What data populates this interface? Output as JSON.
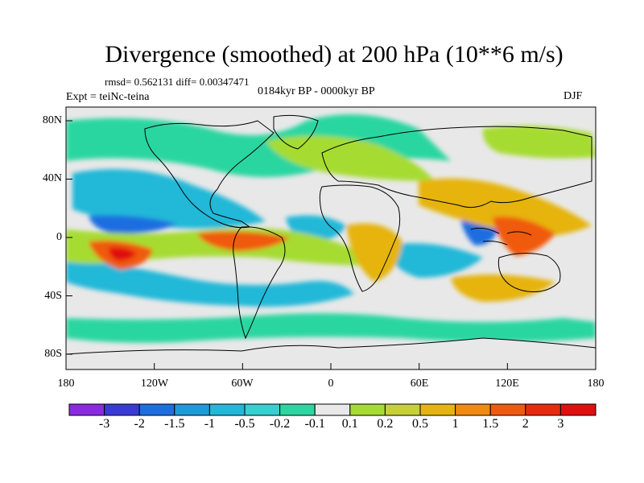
{
  "title": "Divergence (smoothed) at 200 hPa (10**6 m/s)",
  "stats": "rmsd= 0.562131 diff= 0.00347471",
  "period": "0184kyr BP - 0000kyr BP",
  "experiment": "Expt = teiNc-teina",
  "season": "DJF",
  "axes": {
    "lat_ticks": [
      "80N",
      "40N",
      "0",
      "40S",
      "80S"
    ],
    "lon_ticks": [
      "180",
      "120W",
      "60W",
      "0",
      "60E",
      "120E",
      "180"
    ]
  },
  "colorbar": {
    "labels": [
      "-3",
      "-2",
      "-1.5",
      "-1",
      "-0.5",
      "-0.2",
      "-0.1",
      "0.1",
      "0.2",
      "0.5",
      "1",
      "1.5",
      "2",
      "3"
    ],
    "colors": [
      "#8a2be2",
      "#3a3ad6",
      "#1e6ee0",
      "#1e9ad8",
      "#22b8d8",
      "#36d0d0",
      "#2cd6a0",
      "#e8e8e8",
      "#a6dc32",
      "#c8d038",
      "#e6b410",
      "#f08a10",
      "#f05a10",
      "#e82a10",
      "#e01010"
    ]
  },
  "map_colors": {
    "background": "#e8e8e8",
    "neg_strong": "#1e6ee0",
    "neg_mid": "#22b8d8",
    "neg_weak": "#2cd6a0",
    "pos_weak": "#a6dc32",
    "pos_mid": "#e6b410",
    "pos_strong": "#f05a10",
    "pos_max": "#e01010",
    "coast": "#000000"
  }
}
